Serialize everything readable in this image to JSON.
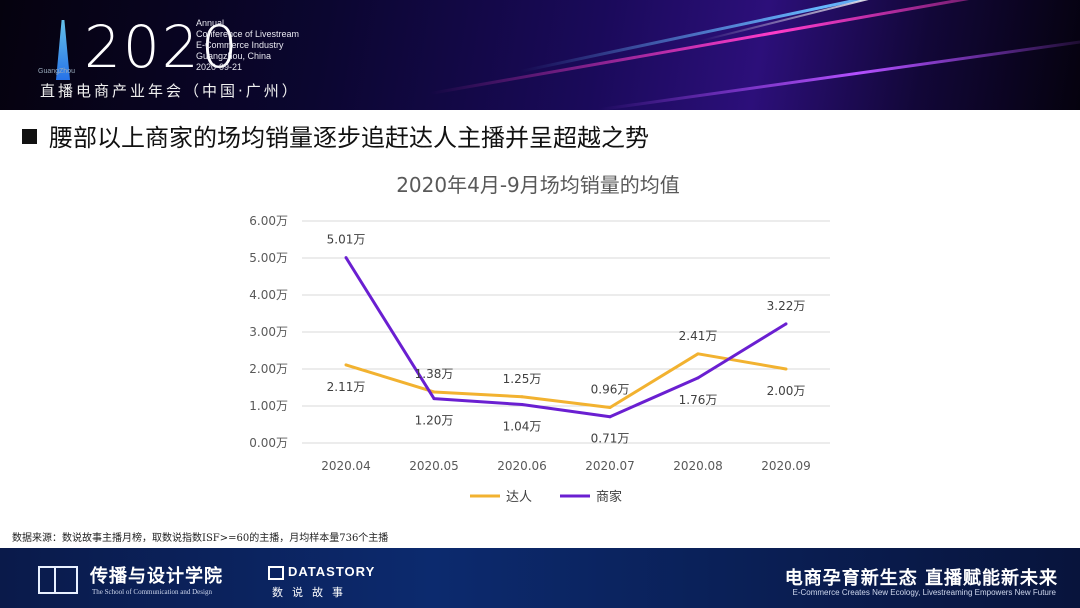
{
  "header": {
    "year": "2020",
    "city_small": "GuangZhou",
    "conference_lines": [
      "Annual",
      "Conference of Livestream",
      "E-Commerce Industry",
      "Guangzhou, China",
      "2020-09-21"
    ],
    "cn_name": "直播电商产业年会（中国·广州）"
  },
  "section": {
    "title": "腰部以上商家的场均销量逐步追赶达人主播并呈超越之势"
  },
  "chart_data": {
    "type": "line",
    "title": "2020年4月-9月场均销量的均值",
    "categories": [
      "2020.04",
      "2020.05",
      "2020.06",
      "2020.07",
      "2020.08",
      "2020.09"
    ],
    "y_ticks": [
      "0.00万",
      "1.00万",
      "2.00万",
      "3.00万",
      "4.00万",
      "5.00万",
      "6.00万"
    ],
    "ylim": [
      0,
      6
    ],
    "grid": true,
    "legend_position": "bottom",
    "series": [
      {
        "name": "达人",
        "color": "#F2B230",
        "values": [
          2.11,
          1.38,
          1.25,
          0.96,
          2.41,
          2.0
        ],
        "labels": [
          "2.11万",
          "1.38万",
          "1.25万",
          "0.96万",
          "2.41万",
          "2.00万"
        ]
      },
      {
        "name": "商家",
        "color": "#6A1FD1",
        "values": [
          5.01,
          1.2,
          1.04,
          0.71,
          1.76,
          3.22
        ],
        "labels": [
          "5.01万",
          "1.20万",
          "1.04万",
          "0.71万",
          "1.76万",
          "3.22万"
        ]
      }
    ]
  },
  "source_note": "数据来源：数说故事主播月榜，取数说指数ISF>=60的主播，月均样本量736个主播",
  "footer": {
    "school_name": "传播与设计学院",
    "school_en": "The School of Communication and Design",
    "ds_name": "DATASTORY",
    "ds_cn": "数说故事",
    "slogan": "电商孕育新生态 直播赋能新未来",
    "slogan_en": "E-Commerce Creates New Ecology, Livestreaming Empowers New Future"
  }
}
